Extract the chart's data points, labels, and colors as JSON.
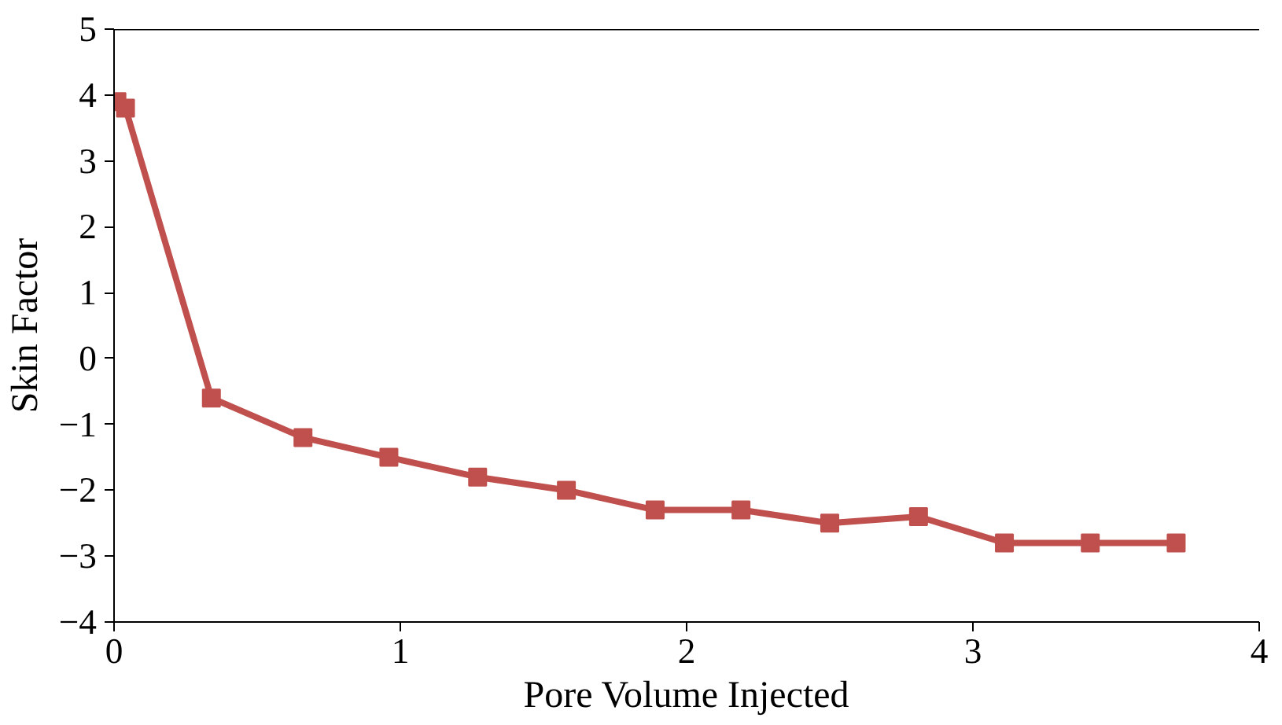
{
  "chart_data": {
    "type": "line",
    "xlabel": "Pore Volume Injected",
    "ylabel": "Skin Factor",
    "x": [
      0.01,
      0.04,
      0.34,
      0.66,
      0.96,
      1.27,
      1.58,
      1.89,
      2.19,
      2.5,
      2.81,
      3.11,
      3.41,
      3.71
    ],
    "series": [
      {
        "color": "#c0504d",
        "values": [
          3.9,
          3.8,
          -0.6,
          -1.2,
          -1.5,
          -1.8,
          -2.0,
          -2.3,
          -2.3,
          -2.5,
          -2.4,
          -2.8,
          -2.8,
          -2.8
        ]
      }
    ],
    "xlim": [
      0,
      4
    ],
    "ylim": [
      -4,
      5
    ],
    "xticks": [
      0,
      1,
      2,
      3,
      4
    ],
    "yticks": [
      -4,
      -3,
      -2,
      -1,
      0,
      1,
      2,
      3,
      4,
      5
    ],
    "grid": false,
    "marker": "square",
    "line_style": "solid"
  }
}
